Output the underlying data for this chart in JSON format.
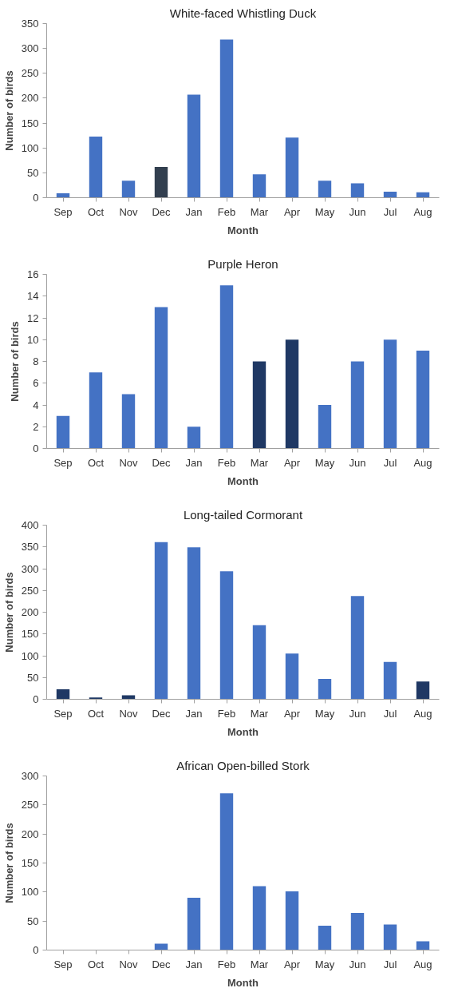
{
  "chart_data": [
    {
      "type": "bar",
      "title": "White-faced Whistling Duck",
      "xlabel": "Month",
      "ylabel": "Number of birds",
      "categories": [
        "Sep",
        "Oct",
        "Nov",
        "Dec",
        "Jan",
        "Feb",
        "Mar",
        "Apr",
        "May",
        "Jun",
        "Jul",
        "Aug"
      ],
      "values": [
        9,
        123,
        34,
        62,
        207,
        318,
        47,
        121,
        34,
        29,
        12,
        11
      ],
      "colors": [
        "#4472c4",
        "#4472c4",
        "#4472c4",
        "#323f4f",
        "#4472c4",
        "#4472c4",
        "#4472c4",
        "#4472c4",
        "#4472c4",
        "#4472c4",
        "#4472c4",
        "#4472c4"
      ],
      "ylim": [
        0,
        350
      ],
      "yticks": [
        0,
        50,
        100,
        150,
        200,
        250,
        300,
        350
      ],
      "grid": false
    },
    {
      "type": "bar",
      "title": "Purple Heron",
      "xlabel": "Month",
      "ylabel": "Number of birds",
      "categories": [
        "Sep",
        "Oct",
        "Nov",
        "Dec",
        "Jan",
        "Feb",
        "Mar",
        "Apr",
        "May",
        "Jun",
        "Jul",
        "Aug"
      ],
      "values": [
        3,
        7,
        5,
        13,
        2,
        15,
        8,
        10,
        4,
        8,
        10,
        9
      ],
      "colors": [
        "#4472c4",
        "#4472c4",
        "#4472c4",
        "#4472c4",
        "#4472c4",
        "#4472c4",
        "#1f3864",
        "#1f3864",
        "#4472c4",
        "#4472c4",
        "#4472c4",
        "#4472c4"
      ],
      "ylim": [
        0,
        16
      ],
      "yticks": [
        0,
        2,
        4,
        6,
        8,
        10,
        12,
        14,
        16
      ],
      "grid": false
    },
    {
      "type": "bar",
      "title": "Long-tailed Cormorant",
      "xlabel": "Month",
      "ylabel": "Number of birds",
      "categories": [
        "Sep",
        "Oct",
        "Nov",
        "Dec",
        "Jan",
        "Feb",
        "Mar",
        "Apr",
        "May",
        "Jun",
        "Jul",
        "Aug"
      ],
      "values": [
        23,
        4,
        9,
        361,
        349,
        294,
        170,
        105,
        47,
        237,
        86,
        41
      ],
      "colors": [
        "#1f3864",
        "#1f3864",
        "#1f3864",
        "#4472c4",
        "#4472c4",
        "#4472c4",
        "#4472c4",
        "#4472c4",
        "#4472c4",
        "#4472c4",
        "#4472c4",
        "#1f3864"
      ],
      "ylim": [
        0,
        400
      ],
      "yticks": [
        0,
        50,
        100,
        150,
        200,
        250,
        300,
        350,
        400
      ],
      "grid": false
    },
    {
      "type": "bar",
      "title": "African Open-billed Stork",
      "xlabel": "Month",
      "ylabel": "Number of birds",
      "categories": [
        "Sep",
        "Oct",
        "Nov",
        "Dec",
        "Jan",
        "Feb",
        "Mar",
        "Apr",
        "May",
        "Jun",
        "Jul",
        "Aug"
      ],
      "values": [
        0,
        0,
        0,
        11,
        90,
        270,
        110,
        101,
        42,
        64,
        44,
        15
      ],
      "colors": [
        "#4472c4",
        "#4472c4",
        "#4472c4",
        "#4472c4",
        "#4472c4",
        "#4472c4",
        "#4472c4",
        "#4472c4",
        "#4472c4",
        "#4472c4",
        "#4472c4",
        "#4472c4"
      ],
      "ylim": [
        0,
        300
      ],
      "yticks": [
        0,
        50,
        100,
        150,
        200,
        250,
        300
      ],
      "grid": false
    }
  ]
}
